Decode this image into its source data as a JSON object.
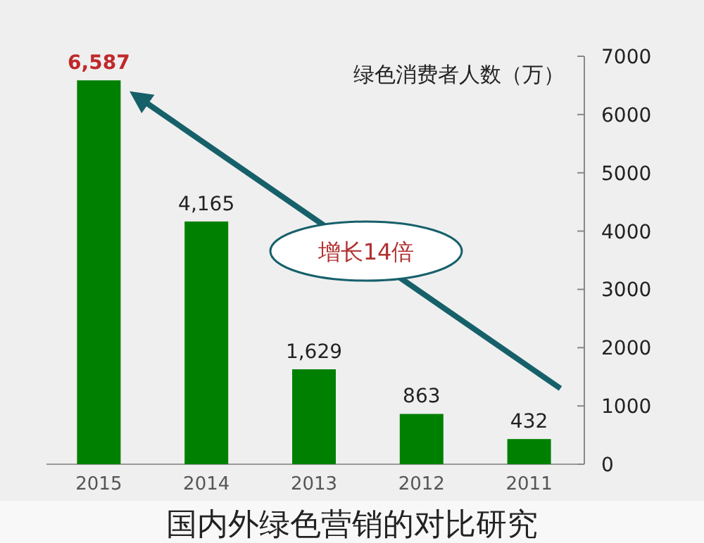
{
  "chart_data": {
    "type": "bar",
    "ylabel": "绿色消费者人数（万）",
    "categories": [
      "2015",
      "2014",
      "2013",
      "2012",
      "2011"
    ],
    "values": [
      6587,
      4165,
      1629,
      863,
      432
    ],
    "color": "#008000",
    "value_labels": [
      "6,587",
      "4,165",
      "1,629",
      "863",
      "432"
    ],
    "ylim": [
      0,
      7000
    ],
    "yticks": [
      0,
      1000,
      2000,
      3000,
      4000,
      5000,
      6000,
      7000
    ],
    "annotations": [
      "增长14倍",
      "国内外绿色营销的对比研究"
    ]
  }
}
